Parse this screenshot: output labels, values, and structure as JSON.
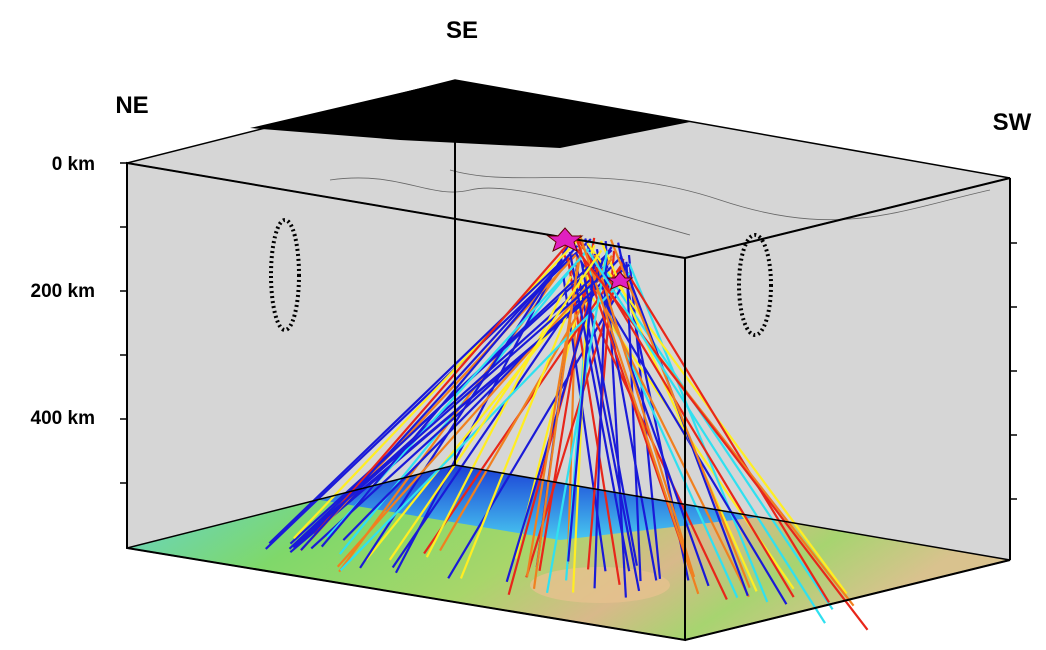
{
  "directions": {
    "top": "SE",
    "left": "NE",
    "right": "SW"
  },
  "depth_labels": [
    "0 km",
    "200 km",
    "400 km"
  ]
}
